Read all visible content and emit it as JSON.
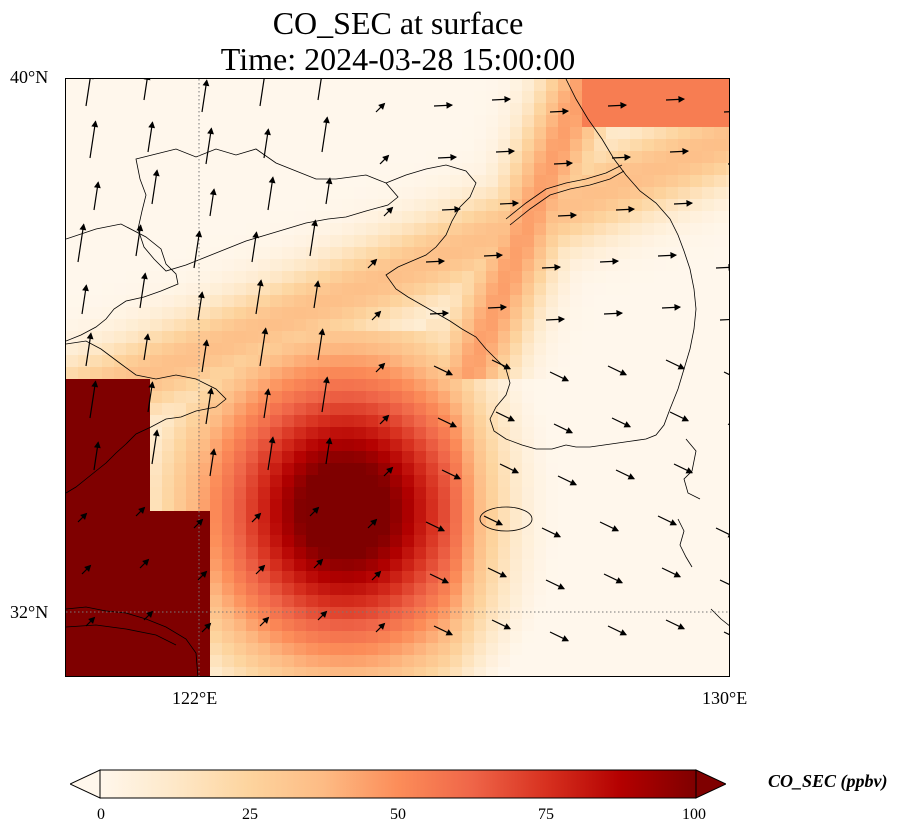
{
  "title": {
    "line1": "CO_SEC at surface",
    "line2": "Time: 2024-03-28 15:00:00"
  },
  "map": {
    "extent_lon": [
      120.0,
      130.0
    ],
    "extent_lat": [
      31.0,
      40.0
    ],
    "lon_ticks": [
      {
        "value": 122,
        "label": "122°E"
      },
      {
        "value": 130,
        "label": "130°E"
      }
    ],
    "lat_ticks": [
      {
        "value": 40,
        "label": "40°N"
      },
      {
        "value": 32,
        "label": "32°N"
      }
    ],
    "gridlines": "dotted at 122°E and 32°N"
  },
  "colorbar": {
    "label": "CO_SEC (ppbv)",
    "min": 0,
    "max": 100,
    "ticks": [
      "0",
      "25",
      "50",
      "75",
      "100"
    ],
    "colormap": "OrRd",
    "stops": [
      "#fff7ec",
      "#fee8c8",
      "#fdd49e",
      "#fdbb84",
      "#fc8d59",
      "#ef6548",
      "#d7301f",
      "#b30000",
      "#7f0000"
    ],
    "extend": "both"
  }
}
